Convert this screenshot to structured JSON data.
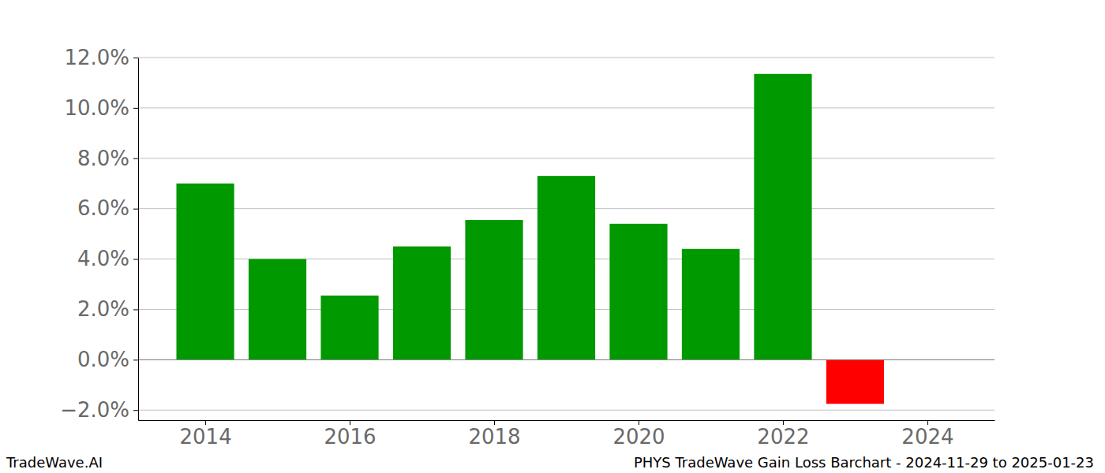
{
  "chart_data": {
    "type": "bar",
    "title": "PHYS TradeWave Gain Loss Barchart - 2024-11-29 to 2025-01-23",
    "annotations": [
      "TradeWave.AI"
    ],
    "x": [
      2014,
      2015,
      2016,
      2017,
      2018,
      2019,
      2020,
      2021,
      2022,
      2023
    ],
    "values": [
      7.0,
      4.0,
      2.55,
      4.5,
      5.55,
      7.3,
      5.4,
      4.4,
      11.35,
      -1.75
    ],
    "colors": [
      "#009900",
      "#009900",
      "#009900",
      "#009900",
      "#009900",
      "#009900",
      "#009900",
      "#009900",
      "#009900",
      "#ff0000"
    ],
    "xlim": [
      2013.07,
      2024.93
    ],
    "xticks": [
      2014,
      2016,
      2018,
      2020,
      2022,
      2024
    ],
    "ylim": [
      -2.4,
      12.0
    ],
    "yticks": [
      {
        "value": -2,
        "label": "−2.0%"
      },
      {
        "value": 0,
        "label": "0.0%"
      },
      {
        "value": 2,
        "label": "2.0%"
      },
      {
        "value": 4,
        "label": "4.0%"
      },
      {
        "value": 6,
        "label": "6.0%"
      },
      {
        "value": 8,
        "label": "8.0%"
      },
      {
        "value": 10,
        "label": "10.0%"
      },
      {
        "value": 12,
        "label": "12.0%"
      }
    ],
    "grid": true
  }
}
